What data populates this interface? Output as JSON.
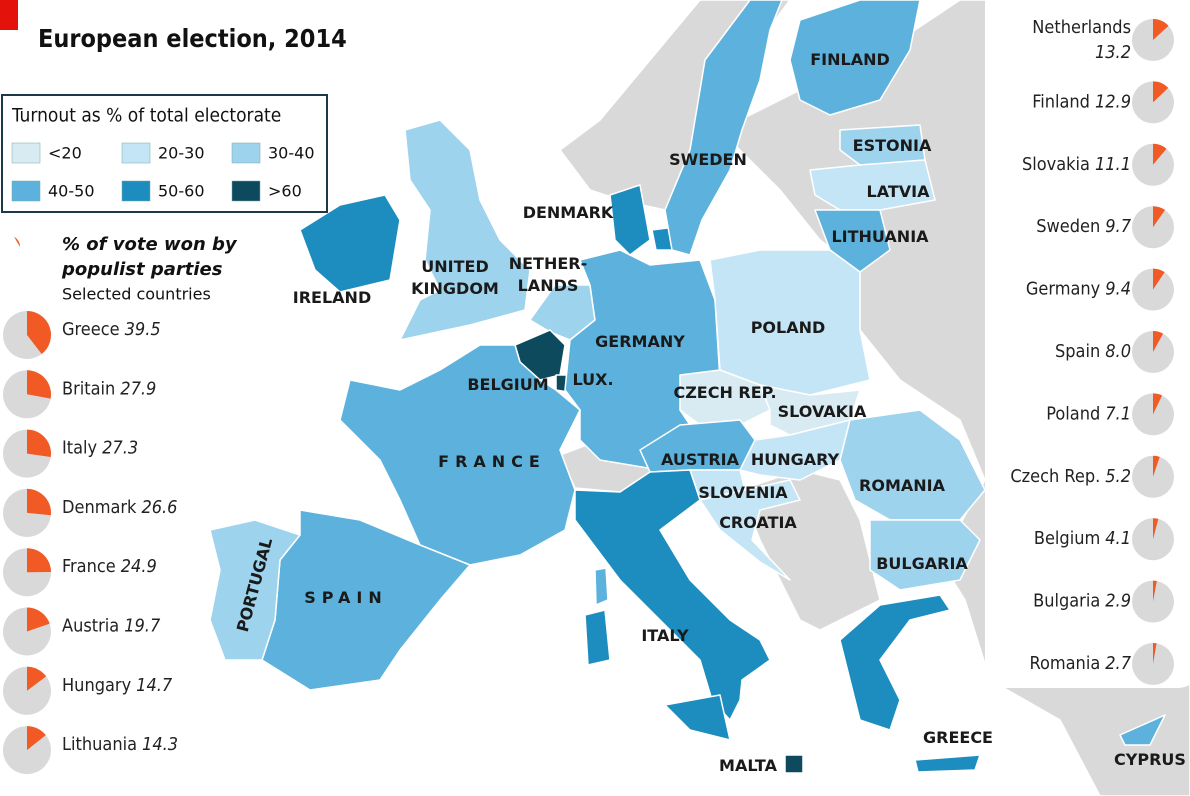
{
  "title": "European election, 2014",
  "turnout_legend": {
    "title": "Turnout as % of total electorate",
    "items": [
      {
        "label": "<20",
        "color": "#d8ebf3"
      },
      {
        "label": "20-30",
        "color": "#c4e5f5"
      },
      {
        "label": "30-40",
        "color": "#9ed3ee"
      },
      {
        "label": "40-50",
        "color": "#5cb2dc"
      },
      {
        "label": "50-60",
        "color": "#1d8cbf"
      },
      {
        "label": ">60",
        "color": "#0d4a5d"
      }
    ]
  },
  "populist_legend": {
    "title": "% of vote won by",
    "title2": "populist parties",
    "subtitle": "Selected countries",
    "color": "#f15a24",
    "background": "#d9d9d9"
  },
  "left_pies": {
    "categories": [
      "Greece",
      "Britain",
      "Italy",
      "Denmark",
      "France",
      "Austria",
      "Hungary",
      "Lithuania"
    ],
    "values": [
      39.5,
      27.9,
      27.3,
      26.6,
      24.9,
      19.7,
      14.7,
      14.3
    ]
  },
  "right_pies": {
    "categories": [
      "Netherlands",
      "Finland",
      "Slovakia",
      "Sweden",
      "Germany",
      "Spain",
      "Poland",
      "Czech Rep.",
      "Belgium",
      "Bulgaria",
      "Romania"
    ],
    "values": [
      13.2,
      12.9,
      11.1,
      9.7,
      9.4,
      8,
      7.1,
      5.2,
      4.1,
      2.9,
      2.7
    ],
    "value_labels": [
      "13.2",
      "12.9",
      "11.1",
      "9.7",
      "9.4",
      "8.0",
      "7.1",
      "5.2",
      "4.1",
      "2.9",
      "2.7"
    ]
  },
  "countries": [
    {
      "label": [
        "IRELAND"
      ],
      "turnout_class": 4
    },
    {
      "label": [
        "UNITED",
        "KINGDOM"
      ],
      "turnout_class": 2
    },
    {
      "label": [
        "NETHER-",
        "LANDS"
      ],
      "turnout_class": 2
    },
    {
      "label": [
        "BELGIUM"
      ],
      "turnout_class": 5
    },
    {
      "label": [
        "LUX."
      ],
      "turnout_class": 5
    },
    {
      "label": [
        "GERMANY"
      ],
      "turnout_class": 3
    },
    {
      "label": [
        "DENMARK"
      ],
      "turnout_class": 4
    },
    {
      "label": [
        "SWEDEN"
      ],
      "turnout_class": 3
    },
    {
      "label": [
        "FINLAND"
      ],
      "turnout_class": 3
    },
    {
      "label": [
        "ESTONIA"
      ],
      "turnout_class": 2
    },
    {
      "label": [
        "LATVIA"
      ],
      "turnout_class": 1
    },
    {
      "label": [
        "LITHUANIA"
      ],
      "turnout_class": 3
    },
    {
      "label": [
        "POLAND"
      ],
      "turnout_class": 1
    },
    {
      "label": [
        "CZECH REP."
      ],
      "turnout_class": 0
    },
    {
      "label": [
        "SLOVAKIA"
      ],
      "turnout_class": 0
    },
    {
      "label": [
        "AUSTRIA"
      ],
      "turnout_class": 3
    },
    {
      "label": [
        "HUNGARY"
      ],
      "turnout_class": 1
    },
    {
      "label": [
        "SLOVENIA"
      ],
      "turnout_class": 1
    },
    {
      "label": [
        "CROATIA"
      ],
      "turnout_class": 1
    },
    {
      "label": [
        "ROMANIA"
      ],
      "turnout_class": 2
    },
    {
      "label": [
        "BULGARIA"
      ],
      "turnout_class": 2
    },
    {
      "label": [
        "FRANCE"
      ],
      "turnout_class": 3
    },
    {
      "label": [
        "SPAIN"
      ],
      "turnout_class": 3
    },
    {
      "label": [
        "PORTUGAL"
      ],
      "turnout_class": 2
    },
    {
      "label": [
        "ITALY"
      ],
      "turnout_class": 4
    },
    {
      "label": [
        "GREECE"
      ],
      "turnout_class": 4
    },
    {
      "label": [
        "CYPRUS"
      ],
      "turnout_class": 3
    },
    {
      "label": [
        "MALTA"
      ],
      "turnout_class": 5
    }
  ]
}
